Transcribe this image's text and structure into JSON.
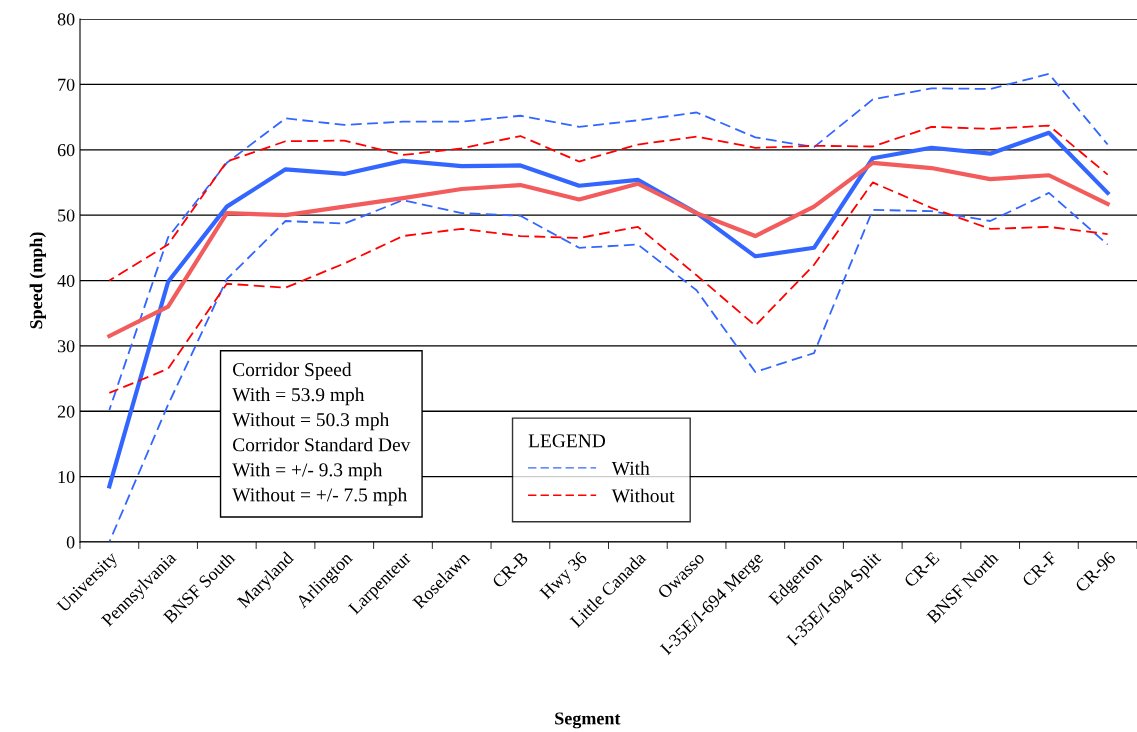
{
  "chart_data": {
    "type": "line",
    "xlabel": "Segment",
    "ylabel": "Speed (mph)",
    "legend_title": "LEGEND",
    "categories": [
      "University",
      "Pennsylvania",
      "BNSF South",
      "Maryland",
      "Arlington",
      "Larpenteur",
      "Roselawn",
      "CR-B",
      "Hwy 36",
      "Little Canada",
      "Owasso",
      "I-35E/I-694 Merge",
      "Edgerton",
      "I-35E/I-694 Split",
      "CR-E",
      "BNSF North",
      "CR-F",
      "CR-96"
    ],
    "series": [
      {
        "name": "With",
        "color": "#3366ff",
        "line_style": "dashed",
        "values": [
          20.2,
          46.6,
          58,
          64.8,
          63.8,
          64.3,
          64.3,
          65.2,
          63.5,
          64.5,
          65.7,
          61.9,
          60.4,
          67.7,
          69.4,
          69.3,
          71.6,
          60.8
        ]
      },
      {
        "color": "#3366ff",
        "line_style": "dashed",
        "values": [
          0,
          21,
          40.2,
          49.1,
          48.7,
          52.3,
          50.3,
          49.9,
          45,
          45.5,
          38.5,
          26,
          28.9,
          50.8,
          50.6,
          49.1,
          53.4,
          45.5
        ]
      },
      {
        "color": "#3366ff",
        "line_style": "solid",
        "values": [
          8.5,
          39.8,
          51.3,
          57,
          56.3,
          58.3,
          57.5,
          57.6,
          54.5,
          55.4,
          50.3,
          43.7,
          45,
          58.7,
          60.3,
          59.4,
          62.6,
          53.4
        ]
      },
      {
        "name": "Without",
        "color": "#ff0000",
        "line_style": "dashed",
        "values": [
          40,
          45.5,
          58.2,
          61.3,
          61.4,
          59.2,
          60.2,
          62.1,
          58.2,
          60.8,
          62,
          60.3,
          60.6,
          60.5,
          63.5,
          63.2,
          63.7,
          56.2
        ]
      },
      {
        "color": "#ff0000",
        "line_style": "dashed",
        "values": [
          22.8,
          26.5,
          39.5,
          38.9,
          42.6,
          46.8,
          47.9,
          46.8,
          46.5,
          48.2,
          40.8,
          33.1,
          42.4,
          55,
          51.1,
          47.9,
          48.2,
          47.1
        ]
      },
      {
        "color": "#f25c5c",
        "line_style": "solid",
        "values": [
          31.5,
          36,
          50.3,
          50,
          51.3,
          52.6,
          54,
          54.6,
          52.4,
          54.8,
          50.3,
          46.8,
          51.3,
          58,
          57.2,
          55.5,
          56.1,
          51.7
        ]
      }
    ],
    "ylim": [
      0,
      80
    ],
    "yticks": [
      0,
      10,
      20,
      30,
      40,
      50,
      60,
      70,
      80
    ],
    "grid": "y",
    "legend": "bottom",
    "annotations": [
      "Corridor Speed",
      "With = 53.9 mph",
      "Without = 50.3 mph",
      "Corridor Standard Dev",
      "With = +/- 9.3 mph",
      "Without = +/- 7.5 mph"
    ]
  }
}
